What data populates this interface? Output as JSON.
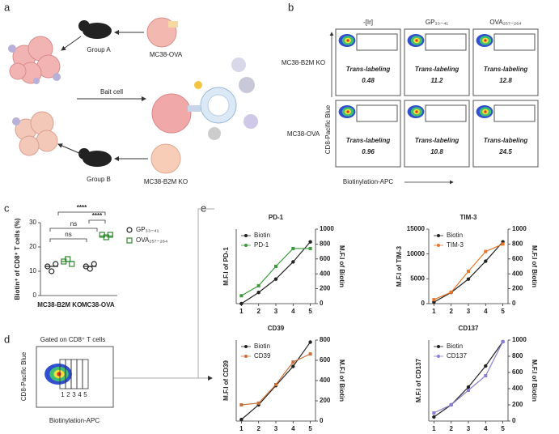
{
  "panel_labels": [
    "a",
    "b",
    "c",
    "d",
    "e"
  ],
  "panel_a": {
    "group_a": "Group A",
    "cell_a": "MC38-OVA",
    "bait": "Bait cell",
    "group_b": "Group B",
    "cell_b": "MC38-B2M KO"
  },
  "panel_b": {
    "columns": [
      "-[Ir]",
      "GP₃₃₋₄₁",
      "OVA₂₅₇₋₂₆₄"
    ],
    "rows": [
      "MC38-B2M KO",
      "MC38-OVA"
    ],
    "cell_label": "Trans-labeling",
    "values": [
      [
        0.48,
        11.2,
        12.8
      ],
      [
        0.96,
        10.8,
        24.5
      ]
    ],
    "y_label": "CD8-Pacific Blue",
    "x_label": "Biotinylation-APC"
  },
  "panel_d": {
    "title": "Gated on CD8⁺ T cells",
    "gates": [
      "1",
      "2",
      "3",
      "4",
      "5"
    ],
    "y_label": "CD8-Pacific Blue",
    "x_label": "Biotinylation-APC"
  },
  "chart_data": [
    {
      "type": "dot",
      "y_label": "Biotin⁺ of CD8⁺ T cells (%)",
      "categories": [
        "MC38-B2M KO",
        "MC38-OVA"
      ],
      "ylim": [
        0,
        30
      ],
      "yticks": [
        0,
        10,
        20,
        30
      ],
      "series": [
        {
          "name": "GP₃₃₋₄₁",
          "color": "#222222",
          "values": [
            [
              12,
              10,
              13
            ],
            [
              12,
              11,
              13
            ]
          ],
          "means": [
            12,
            12
          ]
        },
        {
          "name": "OVA₂₅₇₋₂₆₄",
          "color": "#2e8b2e",
          "values": [
            [
              14,
              15,
              13
            ],
            [
              25,
              24,
              25
            ]
          ],
          "means": [
            14,
            24.5
          ]
        }
      ],
      "annotations": [
        "ns",
        "ns",
        "****",
        "****"
      ]
    },
    {
      "type": "line",
      "title": "PD-1",
      "y_label": "M.F.I of PD-1",
      "y2_label": "M.F.I of Biotin",
      "x": [
        1,
        2,
        3,
        4,
        5
      ],
      "xlim": [
        0.7,
        5.3
      ],
      "xticks": [
        1,
        2,
        3,
        4,
        5
      ],
      "ylim": [
        0,
        5000
      ],
      "y2lim": [
        0,
        1000
      ],
      "y2ticks": [
        0,
        200,
        400,
        600,
        800,
        1000
      ],
      "series": [
        {
          "name": "Biotin",
          "color": "#222222",
          "axis": "y2",
          "values": [
            0,
            150,
            330,
            560,
            830
          ]
        },
        {
          "name": "PD-1",
          "color": "#3a9a3a",
          "values": [
            530,
            1200,
            2500,
            3700,
            3700
          ]
        }
      ]
    },
    {
      "type": "line",
      "title": "TIM-3",
      "y_label": "M.F.I of TIM-3",
      "y2_label": "M.F.I of Biotin",
      "x": [
        1,
        2,
        3,
        4,
        5
      ],
      "xlim": [
        0.7,
        5.3
      ],
      "xticks": [
        1,
        2,
        3,
        4,
        5
      ],
      "ylim": [
        0,
        15000
      ],
      "yticks": [
        0,
        5000,
        10000,
        15000
      ],
      "y2lim": [
        0,
        1000
      ],
      "y2ticks": [
        0,
        200,
        400,
        600,
        800,
        1000
      ],
      "series": [
        {
          "name": "Biotin",
          "color": "#222222",
          "axis": "y2",
          "values": [
            20,
            150,
            330,
            570,
            830
          ]
        },
        {
          "name": "TIM-3",
          "color": "#e8762c",
          "values": [
            800,
            2300,
            6500,
            10500,
            12000
          ]
        }
      ]
    },
    {
      "type": "line",
      "title": "CD39",
      "y_label": "M.F.I of CD39",
      "y2_label": "M.F.I of Biotin",
      "x": [
        1,
        2,
        3,
        4,
        5
      ],
      "xlim": [
        0.7,
        5.3
      ],
      "xticks": [
        1,
        2,
        3,
        4,
        5
      ],
      "ylim": [
        0,
        1400
      ],
      "y2lim": [
        0,
        800
      ],
      "y2ticks": [
        0,
        200,
        400,
        600,
        800
      ],
      "series": [
        {
          "name": "Biotin",
          "color": "#222222",
          "axis": "y2",
          "values": [
            15,
            160,
            350,
            540,
            780
          ]
        },
        {
          "name": "CD39",
          "color": "#c8703a",
          "values": [
            280,
            310,
            630,
            1020,
            1160
          ]
        }
      ]
    },
    {
      "type": "line",
      "title": "CD137",
      "y_label": "M.F.I of CD137",
      "y2_label": "M.F.I of Biotin",
      "x": [
        1,
        2,
        3,
        4,
        5
      ],
      "xlim": [
        0.7,
        5.3
      ],
      "xticks": [
        1,
        2,
        3,
        4,
        5
      ],
      "ylim": [
        0,
        4000
      ],
      "y2lim": [
        0,
        1000
      ],
      "y2ticks": [
        0,
        200,
        400,
        600,
        800,
        1000
      ],
      "series": [
        {
          "name": "Biotin",
          "color": "#222222",
          "axis": "y2",
          "values": [
            50,
            200,
            420,
            680,
            980
          ]
        },
        {
          "name": "CD137",
          "color": "#8a7fd0",
          "values": [
            400,
            800,
            1520,
            2240,
            3920
          ]
        }
      ]
    }
  ]
}
